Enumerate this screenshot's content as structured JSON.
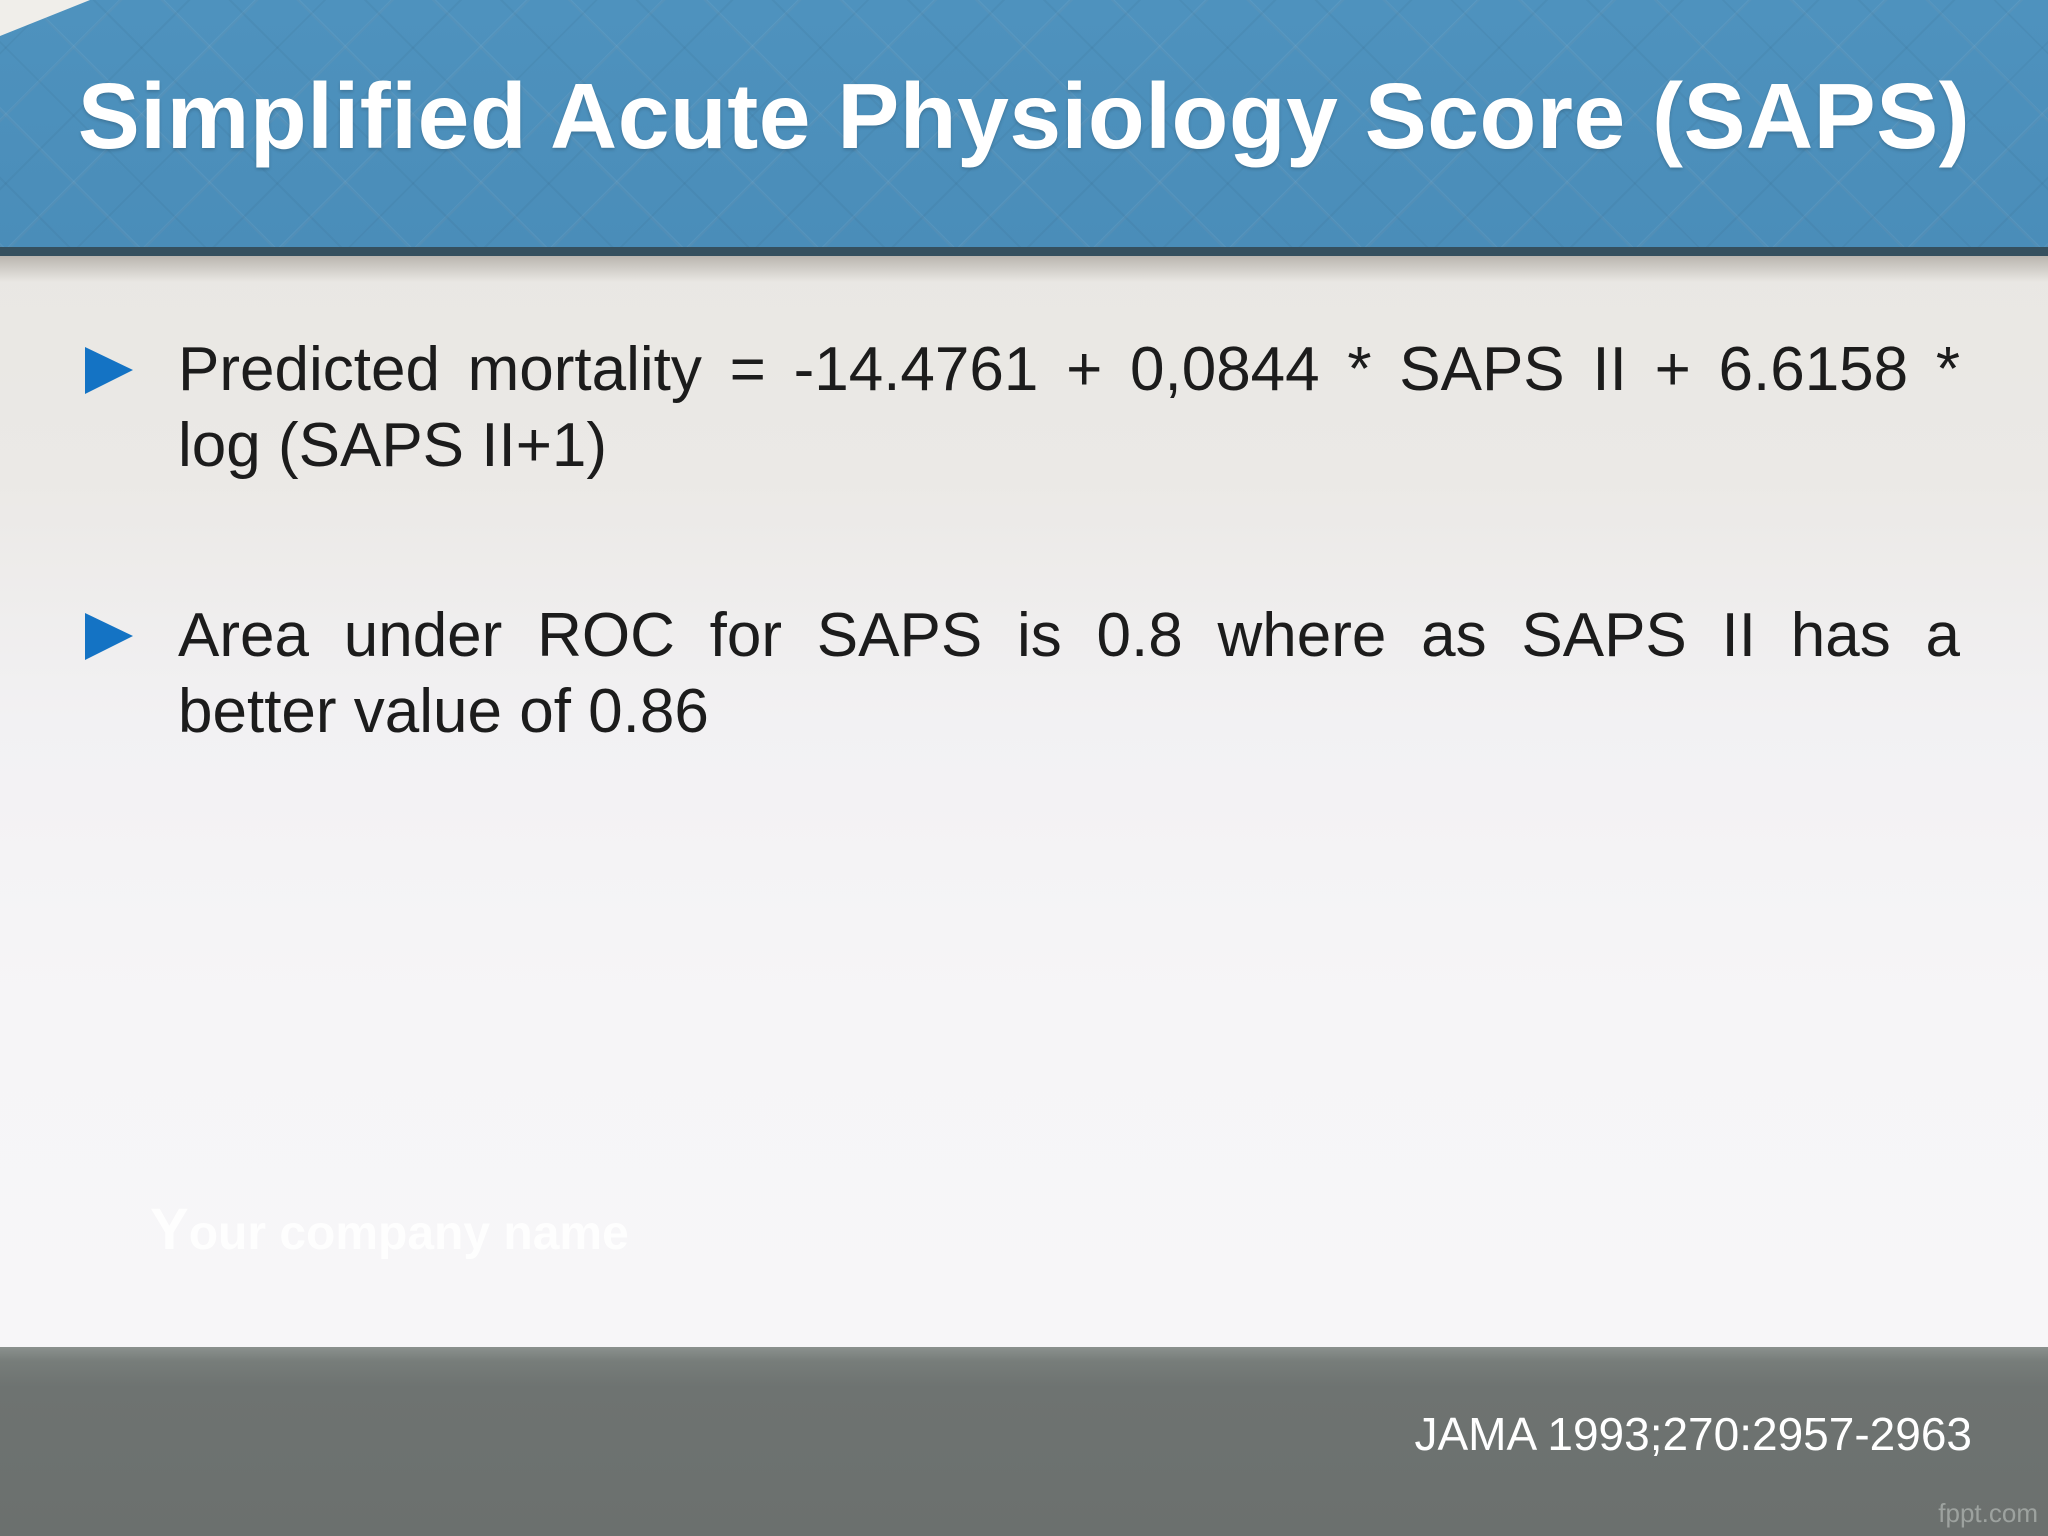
{
  "slide": {
    "title": "Simplified Acute Physiology Score (SAPS)",
    "bullets": [
      {
        "lines": [
          "Predicted mortality = -14.4761 + 0,0844 * SAPS II + 6.6158 *",
          "log (SAPS II+1)"
        ]
      },
      {
        "lines": [
          "Area under ROC for SAPS is 0.8 where as SAPS II has a",
          "better value of 0.86"
        ]
      }
    ],
    "watermark": "Your company name",
    "footer": {
      "citation": "JAMA 1993;270:2957-2963",
      "brand": "fppt.com"
    }
  },
  "colors": {
    "banner_blue": "#4e92be",
    "banner_edge": "#35505f",
    "bullet_blue": "#1473c4",
    "body_text": "#1c1c1c",
    "footer_gray": "#6e7371",
    "title_white": "#ffffff"
  }
}
